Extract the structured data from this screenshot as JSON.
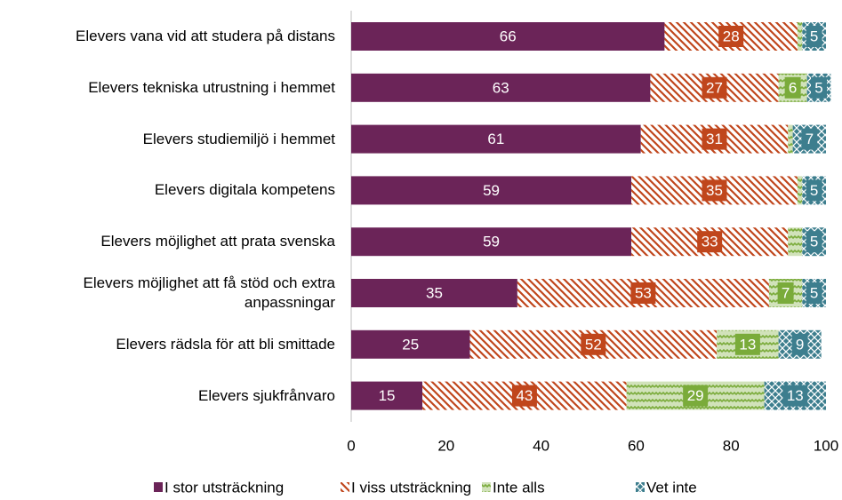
{
  "chart_data": {
    "type": "stacked_bar_horizontal",
    "categories": [
      "Elevers vana vid att studera på distans",
      "Elevers tekniska utrustning i hemmet",
      "Elevers studiemiljö i hemmet",
      "Elevers digitala kompetens",
      "Elevers möjlighet att prata svenska",
      "Elevers möjlighet att få stöd och extra\nanpassningar",
      "Elevers rädsla för att bli smittade",
      "Elevers sjukfrånvaro"
    ],
    "series": [
      {
        "name": "I stor utsträckning",
        "color": "#6b2458",
        "pattern": "solid",
        "values": [
          66,
          63,
          61,
          59,
          59,
          35,
          25,
          15
        ]
      },
      {
        "name": "I viss utsträckning",
        "color": "#c0461c",
        "pattern": "hatch",
        "values": [
          28,
          27,
          31,
          35,
          33,
          53,
          52,
          43
        ]
      },
      {
        "name": "Inte alls",
        "color": "#7aab3a",
        "pattern": "zigzag",
        "values": [
          1,
          6,
          1,
          1,
          3,
          7,
          13,
          29
        ],
        "value_labels": [
          null,
          "6",
          null,
          null,
          null,
          "7",
          "13",
          "29"
        ]
      },
      {
        "name": "Vet inte",
        "color": "#3d7e8e",
        "pattern": "cross",
        "values": [
          5,
          5,
          7,
          5,
          5,
          5,
          9,
          13
        ]
      }
    ],
    "xlim": [
      0,
      100
    ],
    "xticks": [
      0,
      20,
      40,
      60,
      80,
      100
    ],
    "legend": "bottom"
  }
}
